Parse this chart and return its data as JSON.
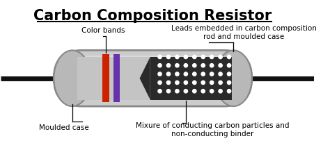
{
  "title": "Carbon Composition Resistor",
  "title_fontsize": 15,
  "background_color": "#ffffff",
  "labels": {
    "color_bands": "Color bands",
    "leads": "Leads embedded in carbon composition\nrod and moulded case",
    "moulded_case": "Moulded case",
    "mixture": "Mixure of conducting carbon particles and\nnon-conducting binder"
  },
  "colors": {
    "body_inner": "#cccccc",
    "body_highlight": "#e0e0e0",
    "carbon_fill": "#2a2a2a",
    "band_red": "#cc2200",
    "band_purple": "#6633aa",
    "lead_color": "#111111",
    "dot_color": "#ffffff",
    "cap_color": "#b8b8b8",
    "cap_edge": "#888888",
    "inner_gray": "#c4c4c4"
  },
  "figsize": [
    4.74,
    2.16
  ],
  "dpi": 100
}
